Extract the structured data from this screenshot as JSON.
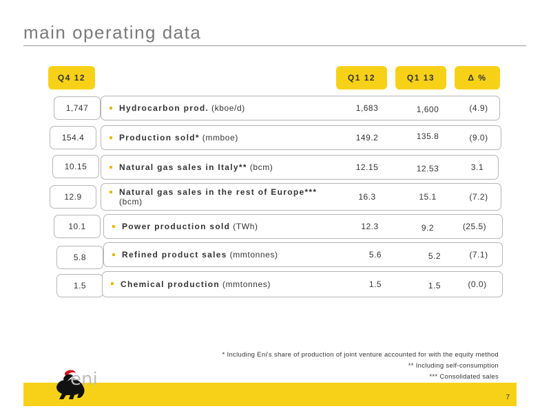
{
  "title": "main operating data",
  "headers": {
    "q4_12": "Q4 12",
    "q1_12": "Q1 12",
    "q1_13": "Q1 13",
    "delta": "Δ %"
  },
  "rows": [
    {
      "q4_12": "1,747",
      "bold": "Hydrocarbon prod.",
      "rest": " (kboe/d)",
      "q1_12": "1,683",
      "q1_13": "1,600",
      "delta": "(4.9)"
    },
    {
      "q4_12": "154.4",
      "bold": "Production  sold*",
      "rest": " (mmboe)",
      "q1_12": "149.2",
      "q1_13": "135.8",
      "delta": "(9.0)"
    },
    {
      "q4_12": "10.15",
      "bold": "Natural gas sales in Italy**",
      "rest": " (bcm)",
      "q1_12": "12.15",
      "q1_13": "12.53",
      "delta": "3.1"
    },
    {
      "q4_12": "12.9",
      "bold": "Natural gas sales in the rest of Europe***",
      "rest": "(bcm)",
      "q1_12": "16.3",
      "q1_13": "15.1",
      "delta": "(7.2)"
    },
    {
      "q4_12": "10.1",
      "bold": "Power production sold",
      "rest": " (TWh)",
      "q1_12": "12.3",
      "q1_13": "9.2",
      "delta": "(25.5)"
    },
    {
      "q4_12": "5.8",
      "bold": "Refined product sales",
      "rest": "  (mmtonnes)",
      "q1_12": "5.6",
      "q1_13": "5.2",
      "delta": "(7.1)"
    },
    {
      "q4_12": "1.5",
      "bold": "Chemical production",
      "rest": " (mmtonnes)",
      "q1_12": "1.5",
      "q1_13": "1.5",
      "delta": "(0.0)"
    }
  ],
  "footnotes": [
    "*   Including Eni's share of production of joint venture accounted for with the equity method",
    "**  Including self-consumption",
    "***  Consolidated sales"
  ],
  "logo_text": "eni",
  "page_number": "7",
  "colors": {
    "accent": "#f7d117",
    "bullet": "#e8b812",
    "border": "#b5b5b5",
    "title": "#7a7a7a"
  }
}
